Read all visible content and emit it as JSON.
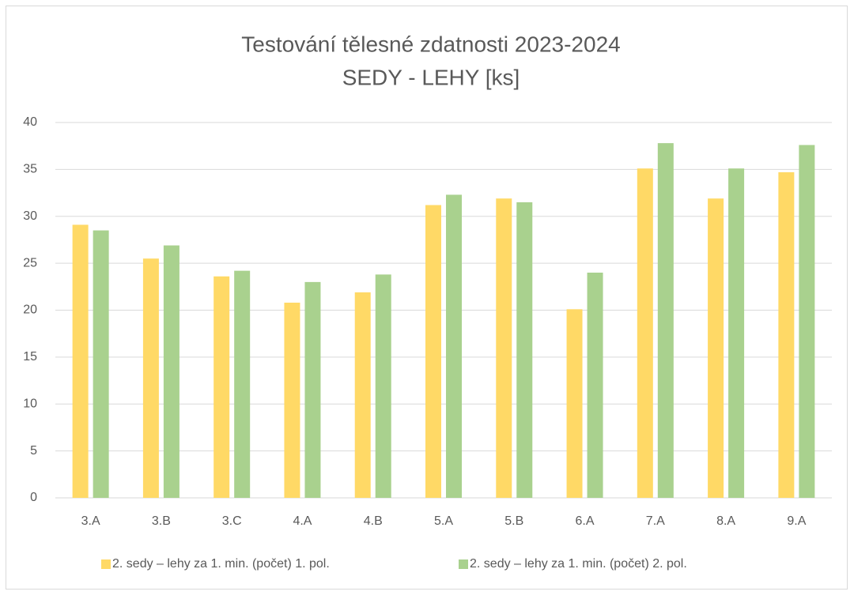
{
  "chart_data": {
    "type": "bar",
    "title": [
      "Testování tělesné zdatnosti 2023-2024",
      "SEDY - LEHY [ks]"
    ],
    "categories": [
      "3.A",
      "3.B",
      "3.C",
      "4.A",
      "4.B",
      "5.A",
      "5.B",
      "6.A",
      "7.A",
      "8.A",
      "9.A"
    ],
    "series": [
      {
        "name": "2. sedy – lehy za 1. min. (počet) 1. pol.",
        "color": "#ffd966",
        "values": [
          29.1,
          25.5,
          23.6,
          20.8,
          21.9,
          31.2,
          31.9,
          20.1,
          35.1,
          31.9,
          34.7
        ]
      },
      {
        "name": "2. sedy – lehy za 1. min. (počet) 2. pol.",
        "color": "#a9d18e",
        "values": [
          28.5,
          26.9,
          24.2,
          23.0,
          23.8,
          32.3,
          31.5,
          24.0,
          37.8,
          35.1,
          37.6
        ]
      }
    ],
    "ylim": [
      0,
      40
    ],
    "yticks": [
      0,
      5,
      10,
      15,
      20,
      25,
      30,
      35,
      40
    ],
    "grid": true,
    "legend": "bottom"
  }
}
